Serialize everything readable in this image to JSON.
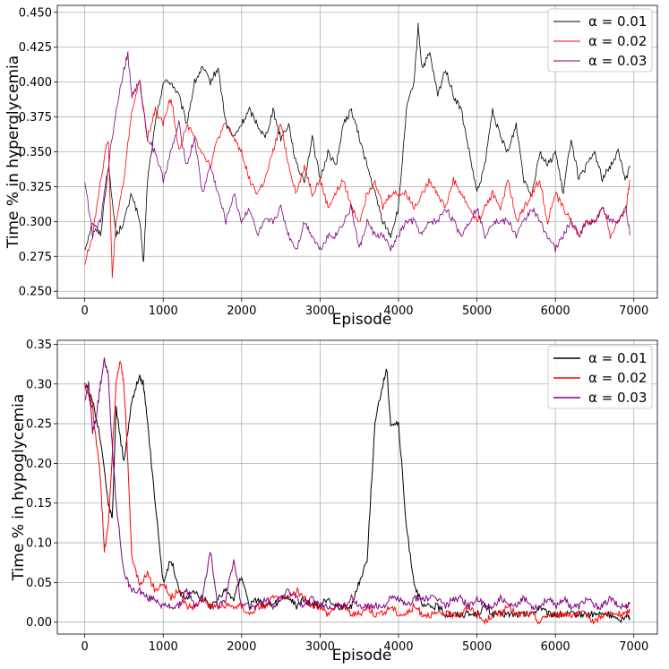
{
  "chart_data": [
    {
      "type": "line",
      "xlabel": "Episode",
      "ylabel": "Time % in hyperglycemia",
      "xlim": [
        -350,
        7300
      ],
      "ylim": [
        0.245,
        0.455
      ],
      "xticks": [
        0,
        1000,
        2000,
        3000,
        4000,
        5000,
        6000,
        7000
      ],
      "xtick_labels": [
        "0",
        "1000",
        "2000",
        "3000",
        "4000",
        "5000",
        "6000",
        "7000"
      ],
      "yticks": [
        0.25,
        0.275,
        0.3,
        0.325,
        0.35,
        0.375,
        0.4,
        0.425,
        0.45
      ],
      "ytick_labels": [
        "0.250",
        "0.275",
        "0.300",
        "0.325",
        "0.350",
        "0.375",
        "0.400",
        "0.425",
        "0.450"
      ],
      "grid": true,
      "legend_position": "top-right",
      "series": [
        {
          "name": "α = 0.01",
          "color": "#000000",
          "x": [
            0,
            100,
            200,
            300,
            400,
            500,
            600,
            700,
            750,
            800,
            900,
            1000,
            1100,
            1200,
            1300,
            1400,
            1500,
            1600,
            1700,
            1800,
            1900,
            2000,
            2100,
            2200,
            2300,
            2400,
            2500,
            2600,
            2700,
            2800,
            2900,
            3000,
            3100,
            3200,
            3300,
            3400,
            3500,
            3600,
            3700,
            3800,
            3900,
            4000,
            4100,
            4200,
            4250,
            4300,
            4400,
            4500,
            4600,
            4700,
            4800,
            4900,
            5000,
            5100,
            5200,
            5300,
            5400,
            5500,
            5600,
            5700,
            5800,
            5900,
            6000,
            6100,
            6200,
            6300,
            6400,
            6500,
            6600,
            6700,
            6800,
            6900,
            6950
          ],
          "y": [
            0.28,
            0.3,
            0.29,
            0.34,
            0.29,
            0.3,
            0.32,
            0.3,
            0.27,
            0.33,
            0.37,
            0.4,
            0.4,
            0.39,
            0.37,
            0.4,
            0.41,
            0.4,
            0.41,
            0.37,
            0.36,
            0.37,
            0.38,
            0.37,
            0.36,
            0.38,
            0.36,
            0.37,
            0.34,
            0.33,
            0.36,
            0.33,
            0.35,
            0.34,
            0.37,
            0.38,
            0.36,
            0.34,
            0.32,
            0.3,
            0.29,
            0.31,
            0.38,
            0.4,
            0.44,
            0.41,
            0.42,
            0.39,
            0.41,
            0.39,
            0.38,
            0.35,
            0.32,
            0.34,
            0.38,
            0.36,
            0.35,
            0.37,
            0.33,
            0.32,
            0.35,
            0.34,
            0.35,
            0.32,
            0.36,
            0.33,
            0.34,
            0.35,
            0.33,
            0.34,
            0.35,
            0.33,
            0.34
          ]
        },
        {
          "name": "α = 0.02",
          "color": "#ff0000",
          "x": [
            0,
            100,
            200,
            300,
            350,
            400,
            500,
            600,
            700,
            800,
            900,
            1000,
            1100,
            1200,
            1300,
            1400,
            1500,
            1600,
            1700,
            1800,
            1900,
            2000,
            2100,
            2200,
            2300,
            2400,
            2500,
            2600,
            2700,
            2800,
            2900,
            3000,
            3100,
            3200,
            3300,
            3400,
            3500,
            3600,
            3700,
            3800,
            3900,
            4000,
            4100,
            4200,
            4300,
            4400,
            4500,
            4600,
            4700,
            4800,
            4900,
            5000,
            5100,
            5200,
            5300,
            5400,
            5500,
            5600,
            5700,
            5800,
            5900,
            6000,
            6100,
            6200,
            6300,
            6400,
            6500,
            6600,
            6700,
            6800,
            6900,
            6950
          ],
          "y": [
            0.27,
            0.29,
            0.33,
            0.36,
            0.26,
            0.3,
            0.33,
            0.38,
            0.4,
            0.36,
            0.38,
            0.37,
            0.39,
            0.35,
            0.37,
            0.36,
            0.35,
            0.34,
            0.36,
            0.37,
            0.36,
            0.35,
            0.33,
            0.32,
            0.33,
            0.35,
            0.37,
            0.34,
            0.32,
            0.34,
            0.32,
            0.33,
            0.31,
            0.32,
            0.33,
            0.31,
            0.3,
            0.32,
            0.33,
            0.31,
            0.32,
            0.32,
            0.32,
            0.31,
            0.32,
            0.33,
            0.32,
            0.31,
            0.33,
            0.32,
            0.31,
            0.3,
            0.31,
            0.32,
            0.31,
            0.33,
            0.3,
            0.31,
            0.32,
            0.33,
            0.3,
            0.32,
            0.31,
            0.3,
            0.29,
            0.3,
            0.3,
            0.31,
            0.29,
            0.3,
            0.31,
            0.33
          ]
        },
        {
          "name": "α = 0.03",
          "color": "#800080",
          "x": [
            0,
            100,
            200,
            300,
            400,
            500,
            550,
            600,
            700,
            800,
            900,
            1000,
            1100,
            1200,
            1300,
            1400,
            1500,
            1600,
            1700,
            1800,
            1900,
            2000,
            2100,
            2200,
            2300,
            2400,
            2500,
            2600,
            2700,
            2800,
            2900,
            3000,
            3100,
            3200,
            3300,
            3400,
            3500,
            3600,
            3700,
            3800,
            3900,
            4000,
            4100,
            4200,
            4300,
            4400,
            4500,
            4600,
            4700,
            4800,
            4900,
            5000,
            5100,
            5200,
            5300,
            5400,
            5500,
            5600,
            5700,
            5800,
            5900,
            6000,
            6100,
            6200,
            6300,
            6400,
            6500,
            6600,
            6700,
            6800,
            6900,
            6950
          ],
          "y": [
            0.33,
            0.29,
            0.3,
            0.34,
            0.38,
            0.41,
            0.42,
            0.39,
            0.4,
            0.36,
            0.35,
            0.33,
            0.35,
            0.37,
            0.34,
            0.36,
            0.32,
            0.34,
            0.32,
            0.3,
            0.32,
            0.3,
            0.31,
            0.29,
            0.3,
            0.3,
            0.31,
            0.29,
            0.28,
            0.3,
            0.29,
            0.28,
            0.29,
            0.29,
            0.3,
            0.31,
            0.28,
            0.3,
            0.29,
            0.29,
            0.28,
            0.29,
            0.3,
            0.3,
            0.29,
            0.3,
            0.3,
            0.31,
            0.3,
            0.29,
            0.3,
            0.31,
            0.29,
            0.3,
            0.3,
            0.3,
            0.29,
            0.3,
            0.31,
            0.3,
            0.29,
            0.28,
            0.29,
            0.3,
            0.29,
            0.3,
            0.3,
            0.31,
            0.3,
            0.3,
            0.31,
            0.29
          ]
        }
      ]
    },
    {
      "type": "line",
      "xlabel": "Episode",
      "ylabel": "Time % in hypoglycemia",
      "xlim": [
        -350,
        7300
      ],
      "ylim": [
        -0.015,
        0.355
      ],
      "xticks": [
        0,
        1000,
        2000,
        3000,
        4000,
        5000,
        6000,
        7000
      ],
      "xtick_labels": [
        "0",
        "1000",
        "2000",
        "3000",
        "4000",
        "5000",
        "6000",
        "7000"
      ],
      "yticks": [
        0.0,
        0.05,
        0.1,
        0.15,
        0.2,
        0.25,
        0.3,
        0.35
      ],
      "ytick_labels": [
        "0.00",
        "0.05",
        "0.10",
        "0.15",
        "0.20",
        "0.25",
        "0.30",
        "0.35"
      ],
      "grid": true,
      "legend_position": "top-right",
      "series": [
        {
          "name": "α = 0.01",
          "color": "#000000",
          "x": [
            0,
            100,
            200,
            300,
            350,
            400,
            500,
            600,
            700,
            750,
            800,
            900,
            1000,
            1100,
            1200,
            1300,
            1400,
            1500,
            1600,
            1700,
            1800,
            1900,
            2000,
            2100,
            2200,
            2300,
            2400,
            2500,
            2600,
            2700,
            2800,
            2900,
            3000,
            3100,
            3200,
            3300,
            3400,
            3500,
            3600,
            3700,
            3800,
            3850,
            3900,
            4000,
            4100,
            4200,
            4300,
            4400,
            4500,
            4600,
            4700,
            4800,
            4900,
            5000,
            5100,
            5200,
            5300,
            5400,
            5500,
            5600,
            5700,
            5800,
            5900,
            6000,
            6100,
            6200,
            6300,
            6400,
            6500,
            6600,
            6700,
            6800,
            6900,
            6950
          ],
          "y": [
            0.3,
            0.28,
            0.23,
            0.15,
            0.13,
            0.27,
            0.2,
            0.28,
            0.31,
            0.3,
            0.25,
            0.15,
            0.05,
            0.08,
            0.04,
            0.03,
            0.04,
            0.03,
            0.02,
            0.03,
            0.04,
            0.03,
            0.06,
            0.02,
            0.03,
            0.02,
            0.02,
            0.03,
            0.03,
            0.02,
            0.03,
            0.02,
            0.02,
            0.03,
            0.02,
            0.02,
            0.02,
            0.05,
            0.08,
            0.25,
            0.3,
            0.32,
            0.25,
            0.25,
            0.12,
            0.05,
            0.02,
            0.02,
            0.02,
            0.01,
            0.01,
            0.01,
            0.01,
            0.01,
            0.02,
            0.01,
            0.01,
            0.01,
            0.01,
            0.01,
            0.01,
            0.02,
            0.01,
            0.01,
            0.01,
            0.01,
            0.01,
            0.01,
            0.01,
            0.01,
            0.01,
            0.0,
            0.01,
            0.005
          ]
        },
        {
          "name": "α = 0.02",
          "color": "#ff0000",
          "x": [
            0,
            100,
            200,
            250,
            300,
            400,
            450,
            500,
            550,
            600,
            700,
            800,
            900,
            1000,
            1100,
            1200,
            1300,
            1400,
            1500,
            1600,
            1700,
            1800,
            1900,
            2000,
            2100,
            2200,
            2300,
            2400,
            2500,
            2600,
            2700,
            2800,
            2900,
            3000,
            3100,
            3200,
            3300,
            3400,
            3500,
            3600,
            3700,
            3800,
            3900,
            4000,
            4100,
            4200,
            4300,
            4400,
            4500,
            4600,
            4700,
            4800,
            4900,
            5000,
            5100,
            5200,
            5300,
            5400,
            5500,
            5600,
            5700,
            5800,
            5900,
            6000,
            6100,
            6200,
            6300,
            6400,
            6500,
            6600,
            6700,
            6800,
            6900,
            6950
          ],
          "y": [
            0.3,
            0.27,
            0.18,
            0.09,
            0.12,
            0.3,
            0.33,
            0.3,
            0.2,
            0.08,
            0.05,
            0.06,
            0.04,
            0.05,
            0.03,
            0.04,
            0.02,
            0.02,
            0.03,
            0.02,
            0.02,
            0.02,
            0.02,
            0.02,
            0.01,
            0.02,
            0.02,
            0.03,
            0.03,
            0.03,
            0.04,
            0.03,
            0.02,
            0.02,
            0.01,
            0.02,
            0.02,
            0.01,
            0.01,
            0.02,
            0.01,
            0.01,
            0.02,
            0.01,
            0.01,
            0.02,
            0.01,
            0.01,
            0.01,
            0.01,
            0.01,
            0.01,
            0.02,
            0.01,
            0.0,
            0.01,
            0.01,
            0.02,
            0.01,
            0.01,
            0.01,
            0.0,
            0.01,
            0.01,
            0.01,
            0.01,
            0.01,
            0.01,
            0.0,
            0.01,
            0.01,
            0.01,
            0.01,
            0.015
          ]
        },
        {
          "name": "α = 0.03",
          "color": "#800080",
          "x": [
            0,
            50,
            100,
            150,
            200,
            250,
            300,
            350,
            400,
            500,
            600,
            700,
            800,
            900,
            1000,
            1100,
            1200,
            1300,
            1400,
            1500,
            1600,
            1700,
            1800,
            1900,
            2000,
            2100,
            2200,
            2300,
            2400,
            2500,
            2600,
            2700,
            2800,
            2900,
            3000,
            3100,
            3200,
            3300,
            3400,
            3500,
            3600,
            3700,
            3800,
            3900,
            4000,
            4100,
            4200,
            4300,
            4400,
            4500,
            4600,
            4700,
            4800,
            4900,
            5000,
            5100,
            5200,
            5300,
            5400,
            5500,
            5600,
            5700,
            5800,
            5900,
            6000,
            6100,
            6200,
            6300,
            6400,
            6500,
            6600,
            6700,
            6800,
            6900,
            6950
          ],
          "y": [
            0.28,
            0.3,
            0.24,
            0.26,
            0.3,
            0.33,
            0.31,
            0.22,
            0.15,
            0.06,
            0.04,
            0.04,
            0.03,
            0.03,
            0.02,
            0.02,
            0.02,
            0.04,
            0.02,
            0.03,
            0.09,
            0.02,
            0.03,
            0.08,
            0.02,
            0.02,
            0.02,
            0.03,
            0.02,
            0.03,
            0.04,
            0.03,
            0.02,
            0.03,
            0.02,
            0.02,
            0.02,
            0.02,
            0.03,
            0.02,
            0.02,
            0.02,
            0.02,
            0.03,
            0.03,
            0.02,
            0.03,
            0.03,
            0.03,
            0.03,
            0.02,
            0.03,
            0.03,
            0.02,
            0.03,
            0.02,
            0.02,
            0.03,
            0.02,
            0.02,
            0.03,
            0.02,
            0.02,
            0.03,
            0.02,
            0.03,
            0.02,
            0.02,
            0.03,
            0.02,
            0.02,
            0.03,
            0.02,
            0.02,
            0.025
          ]
        }
      ]
    }
  ]
}
